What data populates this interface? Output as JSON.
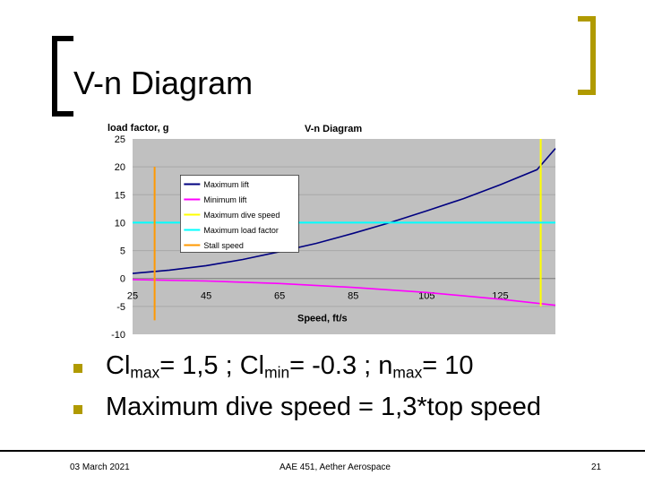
{
  "slide": {
    "title": "V-n Diagram",
    "bullets": [
      {
        "prefix": "Cl",
        "sub1": "max",
        "mid1": "= 1,5  ; Cl",
        "sub2": "min",
        "mid2": "= -0.3 ; n",
        "sub3": "max",
        "end": "= 10"
      },
      {
        "text": "Maximum dive speed = 1,3*top speed"
      }
    ],
    "footer": {
      "date": "03 March 2021",
      "center": "AAE 451, Aether Aerospace",
      "page": "21"
    },
    "accent_color": "#b09a00"
  },
  "chart_data": {
    "type": "line",
    "title": "V-n Diagram",
    "ylabel": "load factor, g",
    "xlabel": "Speed, ft/s",
    "xlim": [
      25,
      140
    ],
    "ylim": [
      -10,
      25
    ],
    "x_ticks": [
      25,
      45,
      65,
      85,
      105,
      125
    ],
    "y_ticks": [
      25,
      20,
      15,
      10,
      5,
      0,
      -5,
      -10
    ],
    "x_tick_labels": [
      "25",
      "45",
      "65",
      "85",
      "105",
      "125"
    ],
    "y_tick_labels": [
      "25",
      "20",
      "15",
      "10",
      "5",
      "0",
      "-5",
      "-10"
    ],
    "grid": true,
    "legend_position": "top-left",
    "series": [
      {
        "name": "Maximum lift",
        "color": "#000080",
        "x": [
          25,
          35,
          45,
          55,
          65,
          75,
          85,
          95,
          105,
          115,
          125,
          135,
          140
        ],
        "y": [
          0.9,
          1.5,
          2.3,
          3.4,
          4.8,
          6.3,
          8.1,
          10.0,
          12.1,
          14.3,
          16.8,
          19.5,
          23.3
        ]
      },
      {
        "name": "Minimum lift",
        "color": "#ff00ff",
        "x": [
          25,
          45,
          65,
          85,
          105,
          125,
          140
        ],
        "y": [
          -0.2,
          -0.45,
          -0.9,
          -1.6,
          -2.5,
          -3.7,
          -4.8
        ]
      },
      {
        "name": "Maximum dive speed",
        "color": "#ffff00",
        "x": [
          136,
          136
        ],
        "y": [
          -5,
          25
        ]
      },
      {
        "name": "Maximum load factor",
        "color": "#00ffff",
        "x": [
          25,
          140
        ],
        "y": [
          10,
          10
        ]
      },
      {
        "name": "Stall speed",
        "color": "#ff9900",
        "x": [
          31,
          31
        ],
        "y": [
          -7.5,
          20
        ]
      }
    ]
  }
}
